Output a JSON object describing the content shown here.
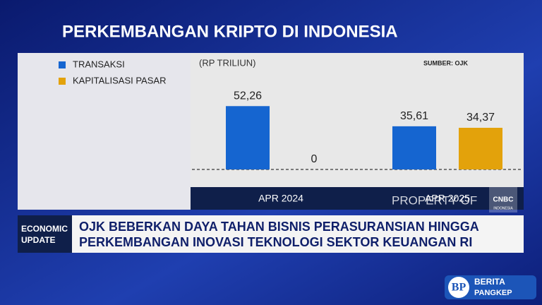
{
  "chart_data": {
    "type": "bar",
    "title": "PERKEMBANGAN KRIPTO DI INDONESIA",
    "subtitle": "(RP TRILIUN)",
    "source": "SUMBER: OJK",
    "categories": [
      "APR 2024",
      "APR 2025"
    ],
    "series": [
      {
        "name": "TRANSAKSI",
        "color": "#1565d0",
        "values": [
          52.26,
          35.61
        ],
        "value_labels": [
          "52,26",
          "35,61"
        ]
      },
      {
        "name": "KAPITALISASI PASAR",
        "color": "#e3a20b",
        "values": [
          0,
          34.37
        ],
        "value_labels": [
          "0",
          "34,37"
        ]
      }
    ],
    "ylim": [
      0,
      60
    ],
    "grid": false,
    "legend": "left"
  },
  "watermark": {
    "text": "PROPERTY OF",
    "brand": "CNBC",
    "region": "INDONESIA"
  },
  "ticker": {
    "label": [
      "ECONOMIC",
      "UPDATE"
    ],
    "headline": [
      "OJK BEBERKAN DAYA TAHAN BISNIS PERASURANSIAN HINGGA",
      "PERKEMBANGAN INOVASI TEKNOLOGI SEKTOR KEUANGAN RI"
    ]
  },
  "logo": {
    "mark": "BP",
    "lines": [
      "BERITA",
      "PANGKEP"
    ]
  }
}
